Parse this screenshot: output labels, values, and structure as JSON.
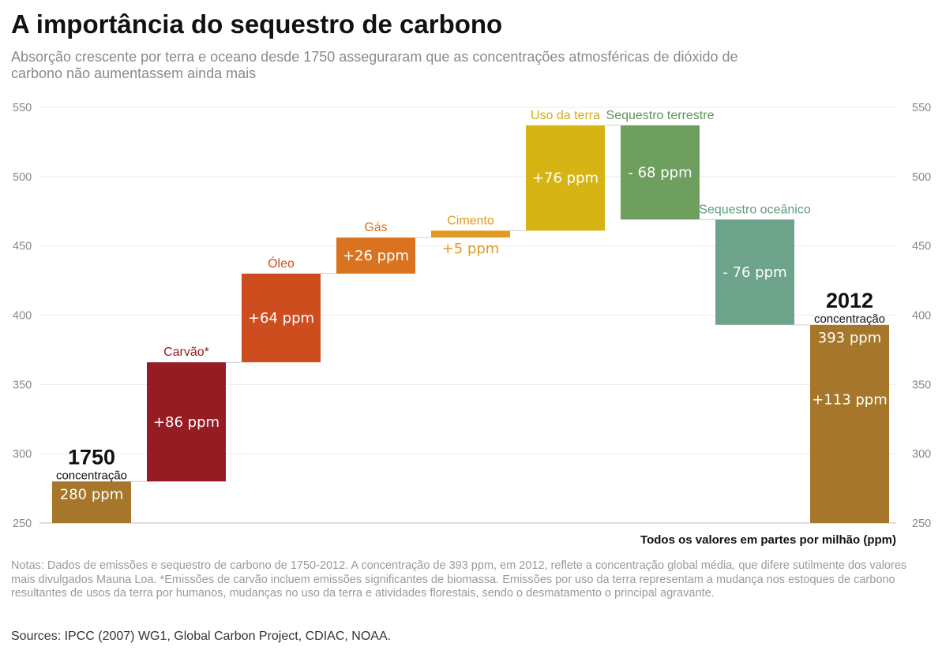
{
  "title": "A importância do sequestro de carbono",
  "subtitle": "Absorção crescente por terra e oceano desde 1750 asseguraram que as concentrações atmosféricas de dióxido de carbono não aumentassem ainda mais",
  "unit_note": "Todos os valores em partes por milhão (ppm)",
  "notes": "Notas: Dados de emissões e sequestro de carbono de 1750-2012. A concentração de 393 ppm, em 2012, reflete a concentração global média, que difere sutilmente dos valores mais divulgados Mauna Loa. *Emissões de carvão incluem emissões significantes de biomassa. Emissões por uso da terra representam a mudança nos estoques de carbono resultantes de usos da terra por humanos, mudanças no uso da terra e atividades florestais, sendo o desmatamento o principal agravante.",
  "sources": "Sources:  IPCC (2007) WG1, Global Carbon Project, CDIAC, NOAA.",
  "chart_data": {
    "type": "bar",
    "subtype": "waterfall",
    "ylim": [
      250,
      550
    ],
    "yticks": [
      250,
      300,
      350,
      400,
      450,
      500,
      550
    ],
    "grid": true,
    "axis_sides": [
      "left",
      "right"
    ],
    "categories": [
      "1750",
      "Carvão*",
      "Óleo",
      "Gás",
      "Cimento",
      "Uso da terra",
      "Sequestro terrestre",
      "Sequestro oceânico",
      "2012"
    ],
    "bars": [
      {
        "label": "1750",
        "sublabel": "concentração",
        "start": 250,
        "end": 280,
        "value_text": "280 ppm",
        "color": "#A6762A",
        "kind": "total"
      },
      {
        "label": "Carvão*",
        "start": 280,
        "end": 366,
        "value_text": "+86 ppm",
        "color": "#941C22",
        "label_color": "#941C22",
        "kind": "delta"
      },
      {
        "label": "Óleo",
        "start": 366,
        "end": 430,
        "value_text": "+64 ppm",
        "color": "#CE4D1F",
        "label_color": "#CE4D1F",
        "kind": "delta"
      },
      {
        "label": "Gás",
        "start": 430,
        "end": 456,
        "value_text": "+26 ppm",
        "color": "#D9731F",
        "label_color": "#D9731F",
        "kind": "delta"
      },
      {
        "label": "Cimento",
        "start": 456,
        "end": 461,
        "value_text": "+5 ppm",
        "color": "#E39A22",
        "label_color": "#E39A22",
        "kind": "delta"
      },
      {
        "label": "Uso da terra",
        "start": 461,
        "end": 537,
        "value_text": "+76 ppm",
        "color": "#D6B414",
        "label_color": "#D2AE16",
        "kind": "delta"
      },
      {
        "label": "Sequestro terrestre",
        "start": 537,
        "end": 469,
        "value_text": "- 68 ppm",
        "color": "#6F9F5F",
        "label_color": "#5E9452",
        "kind": "delta"
      },
      {
        "label": "Sequestro oceânico",
        "start": 469,
        "end": 393,
        "value_text": "- 76 ppm",
        "color": "#6CA38A",
        "label_color": "#5E9A82",
        "kind": "delta"
      },
      {
        "label": "2012",
        "sublabel": "concentração",
        "start": 250,
        "end": 393,
        "value_text": "393 ppm",
        "value_text_2": "+113 ppm",
        "color": "#A6762A",
        "kind": "total"
      }
    ]
  }
}
